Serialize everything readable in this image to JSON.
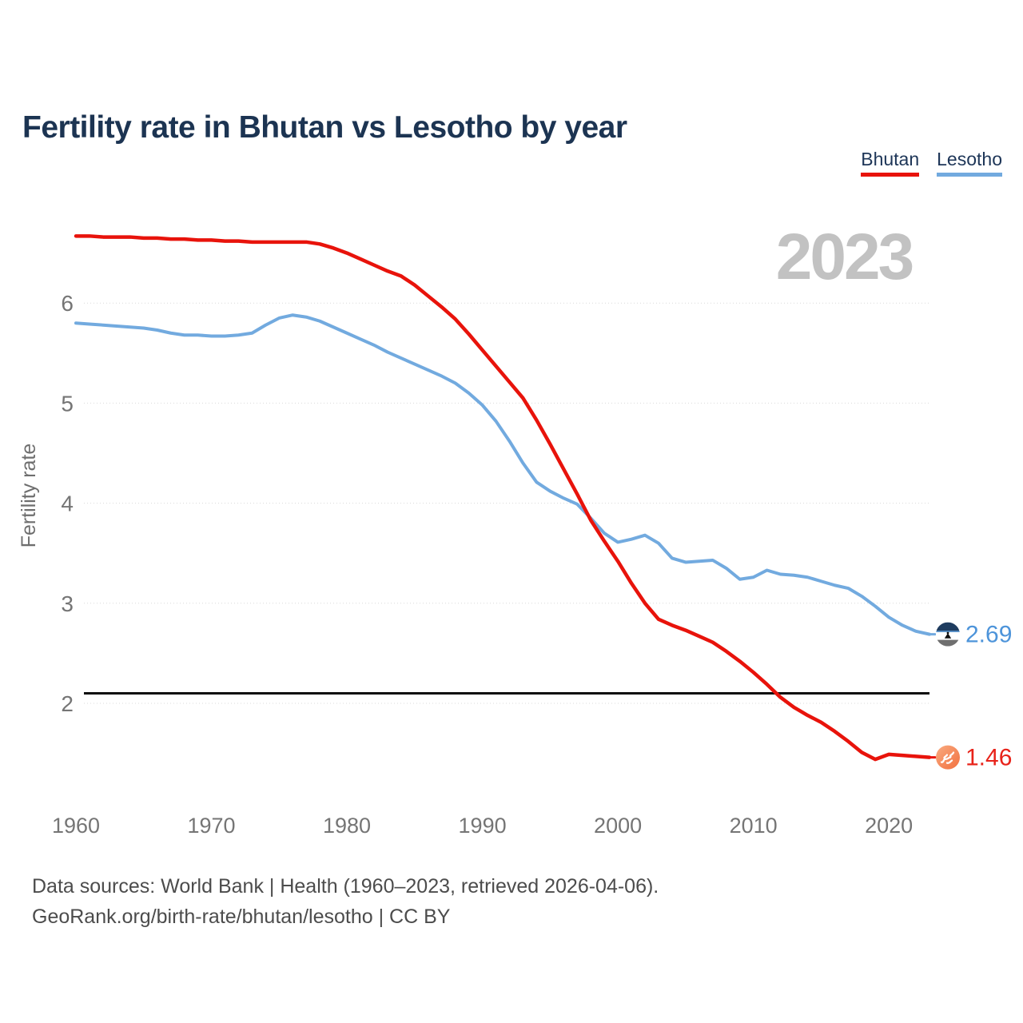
{
  "page": {
    "title": "Fertility rate in Bhutan vs Lesotho by year"
  },
  "legend": [
    {
      "label": "Bhutan",
      "color": "#e8130b"
    },
    {
      "label": "Lesotho",
      "color": "#72aadf"
    }
  ],
  "chart_data": {
    "type": "line",
    "title": "Fertility rate in Bhutan vs Lesotho by year",
    "xlabel": "",
    "ylabel": "Fertility rate",
    "watermark_year": "2023",
    "x": [
      1960,
      1961,
      1962,
      1963,
      1964,
      1965,
      1966,
      1967,
      1968,
      1969,
      1970,
      1971,
      1972,
      1973,
      1974,
      1975,
      1976,
      1977,
      1978,
      1979,
      1980,
      1981,
      1982,
      1983,
      1984,
      1985,
      1986,
      1987,
      1988,
      1989,
      1990,
      1991,
      1992,
      1993,
      1994,
      1995,
      1996,
      1997,
      1998,
      1999,
      2000,
      2001,
      2002,
      2003,
      2004,
      2005,
      2006,
      2007,
      2008,
      2009,
      2010,
      2011,
      2012,
      2013,
      2014,
      2015,
      2016,
      2017,
      2018,
      2019,
      2020,
      2021,
      2022,
      2023
    ],
    "series": [
      {
        "name": "Bhutan",
        "color": "#e8130b",
        "values": [
          6.67,
          6.67,
          6.66,
          6.66,
          6.66,
          6.65,
          6.65,
          6.64,
          6.64,
          6.63,
          6.63,
          6.62,
          6.62,
          6.61,
          6.61,
          6.61,
          6.61,
          6.61,
          6.59,
          6.55,
          6.5,
          6.44,
          6.38,
          6.32,
          6.27,
          6.18,
          6.07,
          5.96,
          5.84,
          5.69,
          5.53,
          5.37,
          5.21,
          5.05,
          4.83,
          4.59,
          4.34,
          4.09,
          3.83,
          3.62,
          3.42,
          3.2,
          3.0,
          2.84,
          2.78,
          2.73,
          2.67,
          2.61,
          2.52,
          2.42,
          2.31,
          2.19,
          2.06,
          1.96,
          1.88,
          1.81,
          1.72,
          1.62,
          1.51,
          1.44,
          1.49,
          1.48,
          1.47,
          1.46
        ]
      },
      {
        "name": "Lesotho",
        "color": "#72aadf",
        "values": [
          5.8,
          5.79,
          5.78,
          5.77,
          5.76,
          5.75,
          5.73,
          5.7,
          5.68,
          5.68,
          5.67,
          5.67,
          5.68,
          5.7,
          5.78,
          5.85,
          5.88,
          5.86,
          5.82,
          5.76,
          5.7,
          5.64,
          5.58,
          5.51,
          5.45,
          5.39,
          5.33,
          5.27,
          5.2,
          5.1,
          4.98,
          4.82,
          4.62,
          4.4,
          4.21,
          4.12,
          4.05,
          3.99,
          3.85,
          3.7,
          3.61,
          3.64,
          3.68,
          3.6,
          3.45,
          3.41,
          3.42,
          3.43,
          3.35,
          3.24,
          3.26,
          3.33,
          3.29,
          3.28,
          3.26,
          3.22,
          3.18,
          3.15,
          3.07,
          2.97,
          2.86,
          2.78,
          2.72,
          2.69
        ]
      }
    ],
    "yticks": [
      2,
      3,
      4,
      5,
      6
    ],
    "xticks": [
      1960,
      1970,
      1980,
      1990,
      2000,
      2010,
      2020
    ],
    "ylim": [
      1.3,
      6.9
    ],
    "threshold": 2.1,
    "legend_position": "top-right",
    "grid": true,
    "end_labels": [
      {
        "series": "Bhutan",
        "value": "1.46",
        "icon": "bhutan-flag-icon"
      },
      {
        "series": "Lesotho",
        "value": "2.69",
        "icon": "lesotho-flag-icon"
      }
    ]
  },
  "footer": {
    "line1": "Data sources: World Bank | Health (1960–2023, retrieved 2026-04-06).",
    "line2": "GeoRank.org/birth-rate/bhutan/lesotho | CC BY"
  }
}
